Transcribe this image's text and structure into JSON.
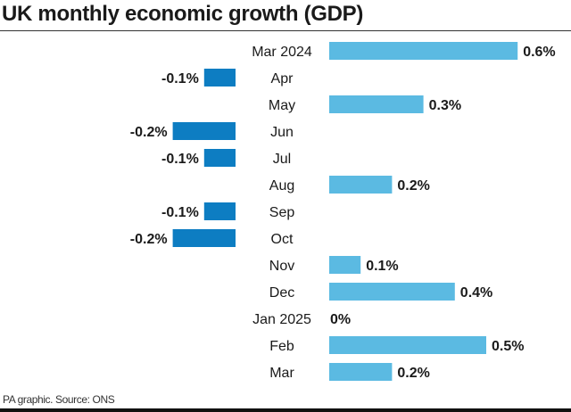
{
  "chart_data": {
    "type": "bar",
    "orientation": "horizontal",
    "title": "UK monthly economic growth (GDP)",
    "categories": [
      "Mar 2024",
      "Apr",
      "May",
      "Jun",
      "Jul",
      "Aug",
      "Sep",
      "Oct",
      "Nov",
      "Dec",
      "Jan 2025",
      "Feb",
      "Mar"
    ],
    "values": [
      0.6,
      -0.1,
      0.3,
      -0.2,
      -0.1,
      0.2,
      -0.1,
      -0.2,
      0.1,
      0.4,
      0,
      0.5,
      0.2
    ],
    "data_labels": [
      "0.6%",
      "-0.1%",
      "0.3%",
      "-0.2%",
      "-0.1%",
      "0.2%",
      "-0.1%",
      "-0.2%",
      "0.1%",
      "0.4%",
      "0%",
      "0.5%",
      "0.2%"
    ],
    "unit": "%",
    "colors": {
      "positive": "#5bbae2",
      "negative": "#0d7dc2"
    },
    "grid": false,
    "legend": "none"
  },
  "source": "PA graphic. Source: ONS"
}
